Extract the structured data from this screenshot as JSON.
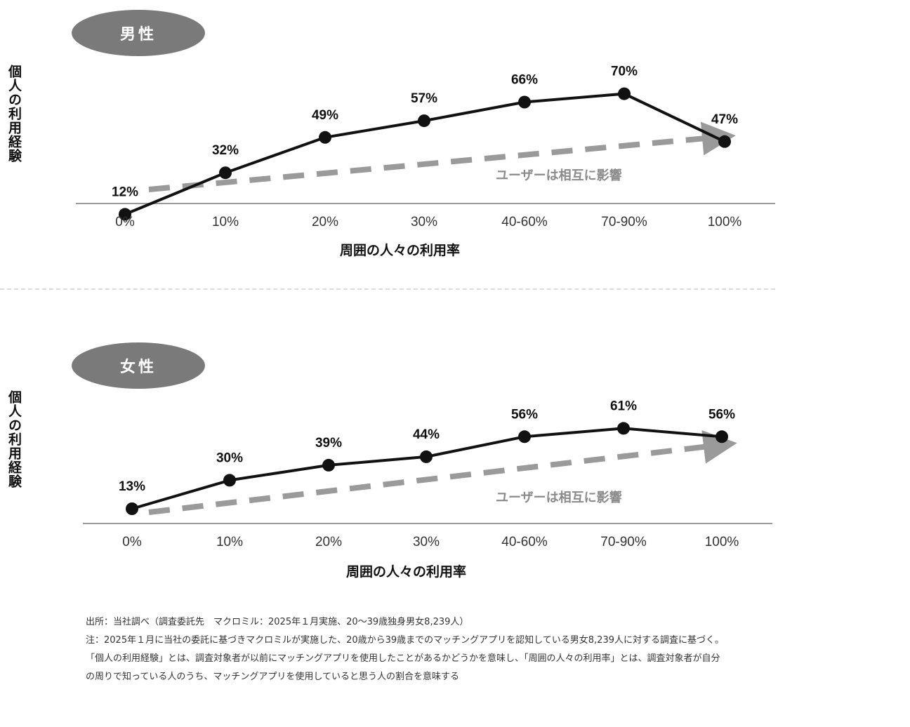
{
  "chart_data": [
    {
      "type": "line",
      "badge": "男性",
      "ylabel": "個人の利用経験",
      "xlabel": "周囲の人々の利用率",
      "categories": [
        "0%",
        "10%",
        "20%",
        "30%",
        "40-60%",
        "70-90%",
        "100%"
      ],
      "values": [
        12,
        32,
        49,
        57,
        66,
        70,
        47
      ],
      "value_labels": [
        "12%",
        "32%",
        "49%",
        "57%",
        "66%",
        "70%",
        "47%"
      ],
      "annotation": "ユーザーは相互に影響",
      "ylim": [
        0,
        80
      ],
      "grid": false,
      "colors": {
        "line": "#111111",
        "arrow": "#9a9a9a",
        "badge": "#7a7a7a"
      }
    },
    {
      "type": "line",
      "badge": "女性",
      "ylabel": "個人の利用経験",
      "xlabel": "周囲の人々の利用率",
      "categories": [
        "0%",
        "10%",
        "20%",
        "30%",
        "40-60%",
        "70-90%",
        "100%"
      ],
      "values": [
        13,
        30,
        39,
        44,
        56,
        61,
        56
      ],
      "value_labels": [
        "13%",
        "30%",
        "39%",
        "44%",
        "56%",
        "61%",
        "56%"
      ],
      "annotation": "ユーザーは相互に影響",
      "ylim": [
        0,
        80
      ],
      "grid": false,
      "colors": {
        "line": "#111111",
        "arrow": "#9a9a9a",
        "badge": "#7a7a7a"
      }
    }
  ],
  "notes": {
    "source": "出所：当社調べ（調査委託先　マクロミル：2025年１月実施、20〜39歳独身男女8,239人）",
    "note1": "注：2025年１月に当社の委託に基づきマクロミルが実施した、20歳から39歳までのマッチングアプリを認知している男女8,239人に対する調査に基づく。",
    "note2": "「個人の利用経験」とは、調査対象者が以前にマッチングアプリを使用したことがあるかどうかを意味し、「周囲の人々の利用率」とは、調査対象者が自分",
    "note3": "の周りで知っている人のうち、マッチングアプリを使用していると思う人の割合を意味する"
  }
}
